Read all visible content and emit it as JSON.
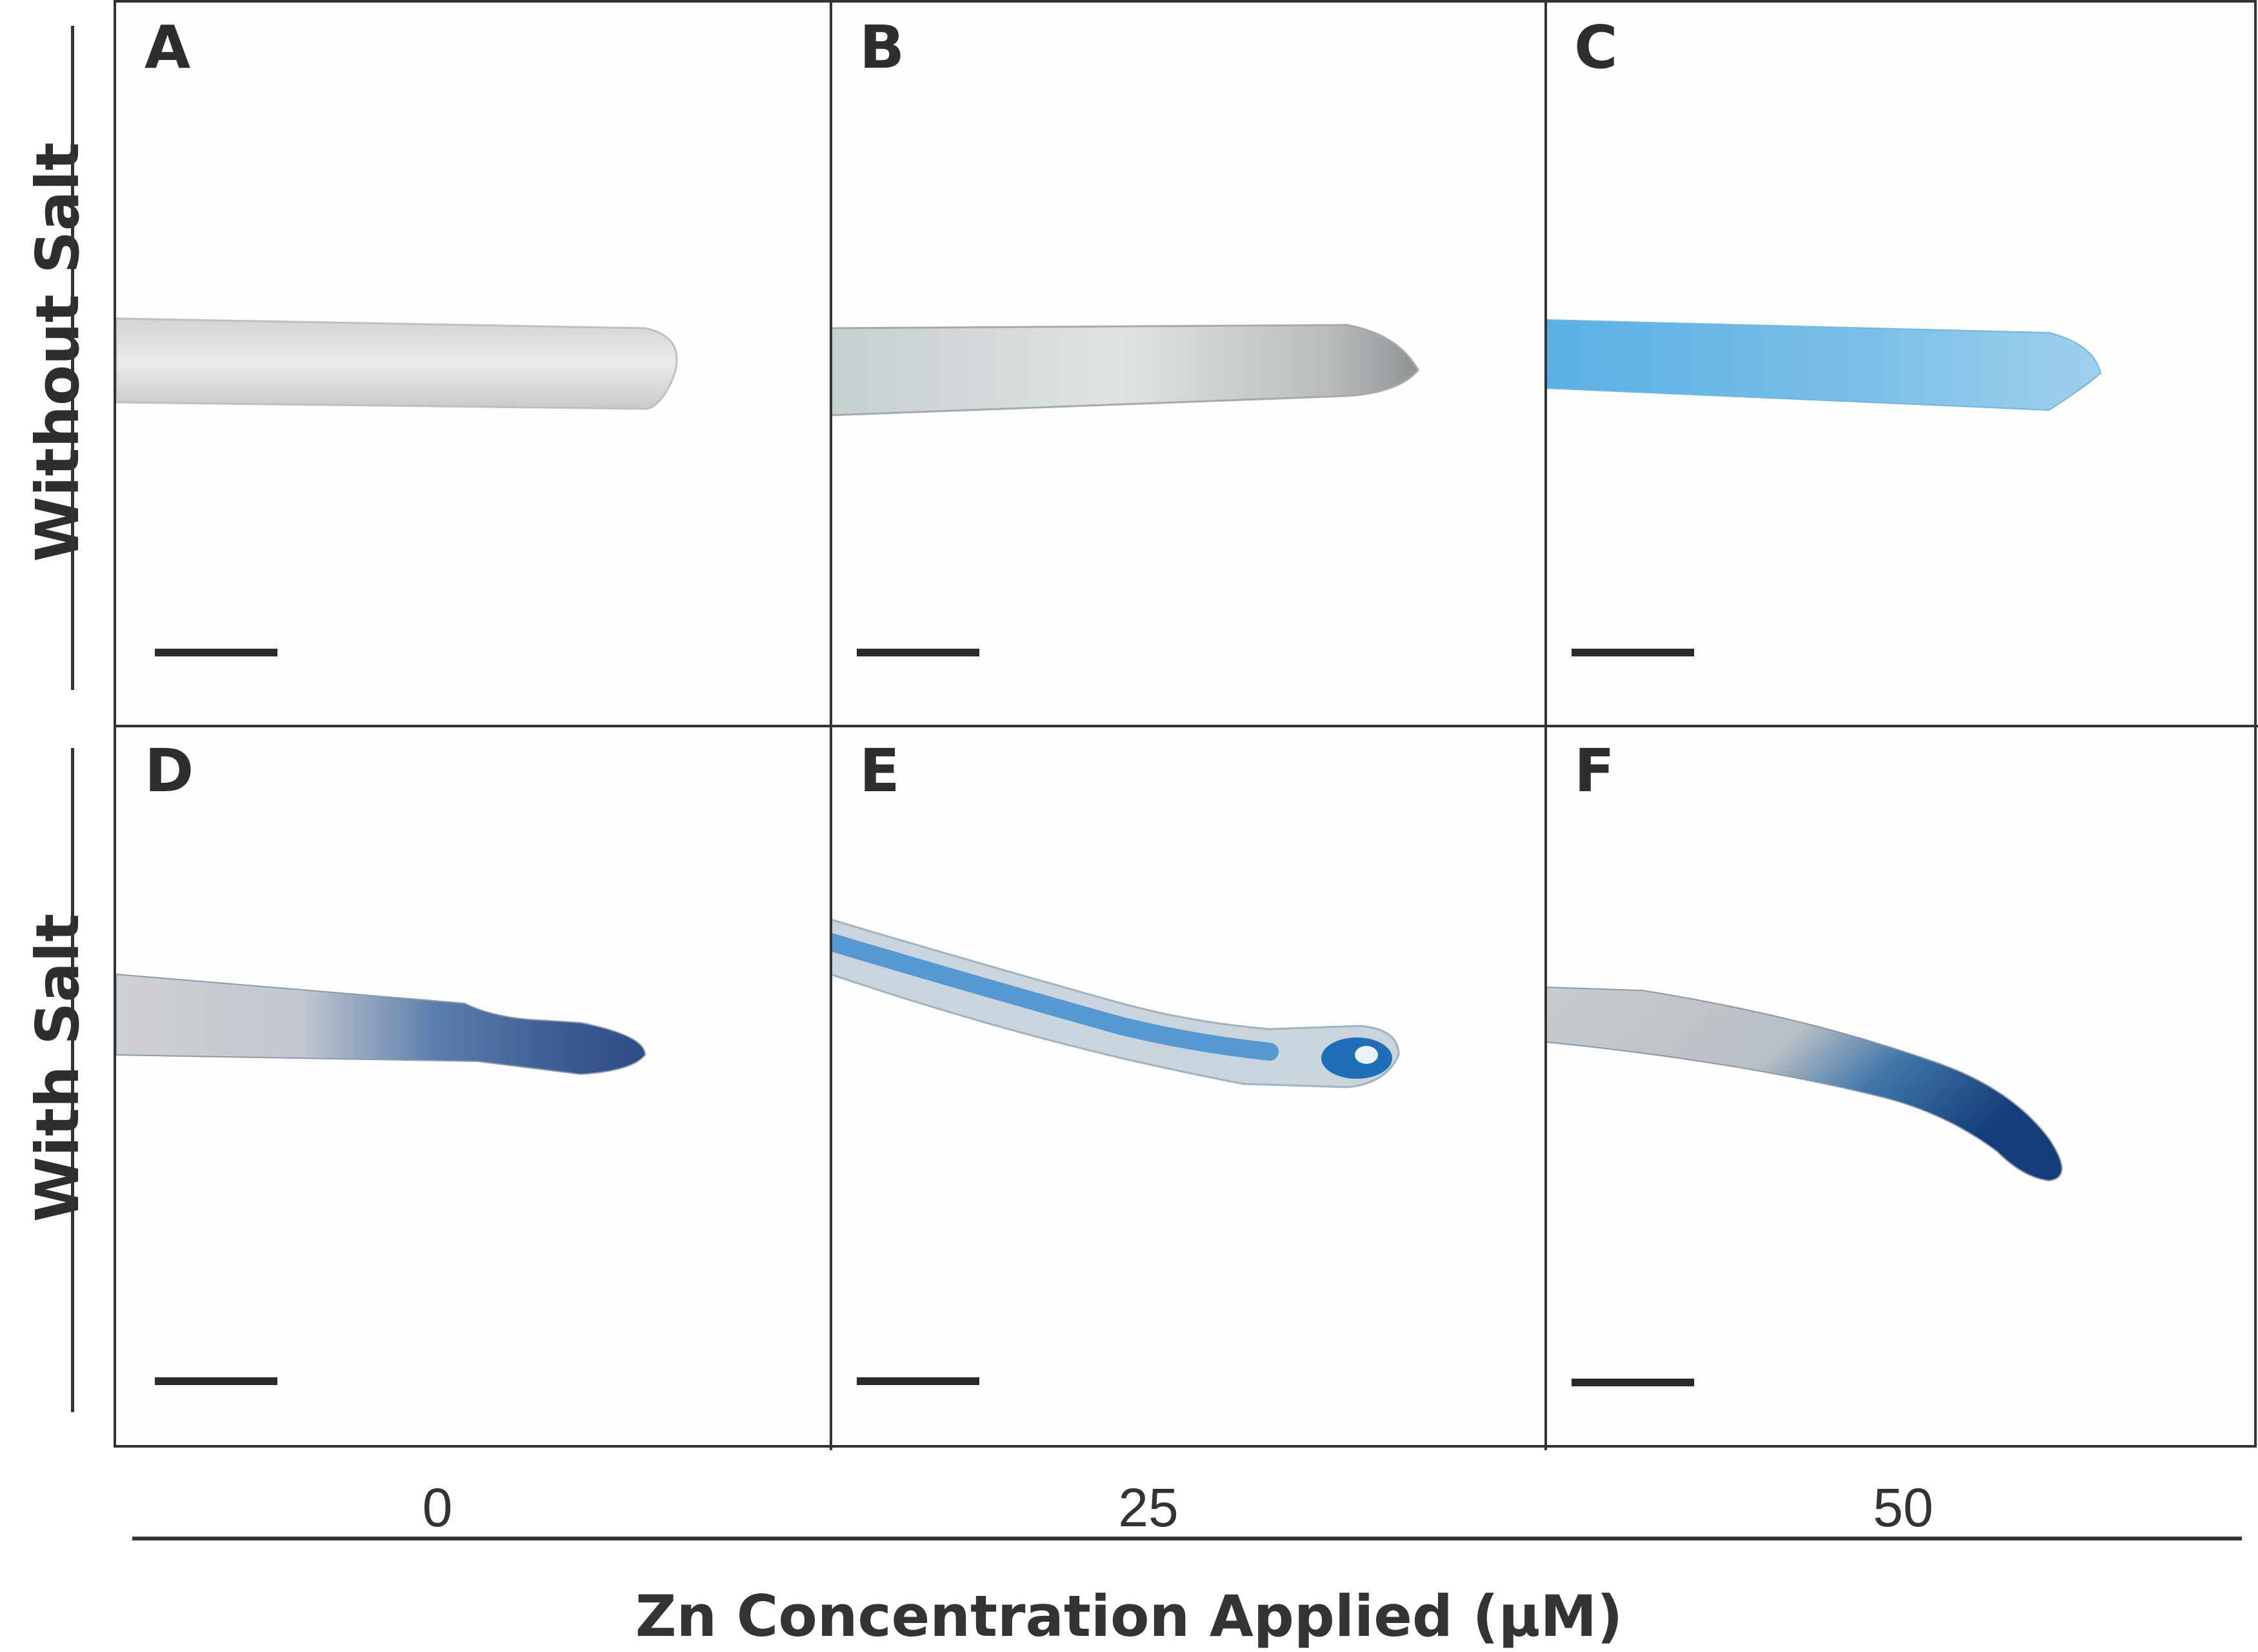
{
  "panels": [
    {
      "label": "A",
      "salt": "without",
      "zn": "0",
      "stain": "none"
    },
    {
      "label": "B",
      "salt": "without",
      "zn": "25",
      "stain": "none"
    },
    {
      "label": "C",
      "salt": "without",
      "zn": "50",
      "stain": "light-blue"
    },
    {
      "label": "D",
      "salt": "with",
      "zn": "0",
      "stain": "blue-tip"
    },
    {
      "label": "E",
      "salt": "with",
      "zn": "25",
      "stain": "blue-center"
    },
    {
      "label": "F",
      "salt": "with",
      "zn": "50",
      "stain": "blue-tip"
    }
  ],
  "row_labels": [
    "Without Salt",
    "With Salt"
  ],
  "col_labels": [
    "0",
    "25",
    "50"
  ],
  "x_title": "Zn Concentration Applied (µM)",
  "colors": {
    "frame": "#333333",
    "root_gray": "#d8dadc",
    "stain_light": "#5fb2e2",
    "stain_dark": "#1e4c8c"
  }
}
